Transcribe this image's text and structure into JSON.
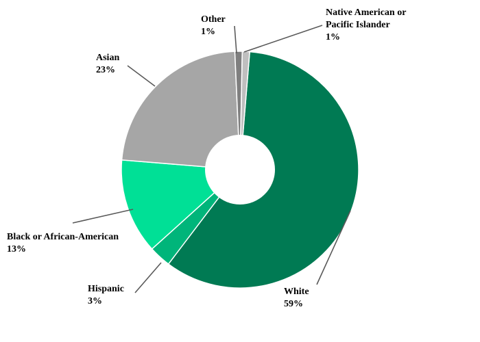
{
  "chart_data": {
    "type": "pie",
    "categories": [
      "White",
      "Hispanic",
      "Black or African-American",
      "Asian",
      "Other",
      "Native American or Pacific Islander"
    ],
    "values": [
      59,
      3,
      13,
      23,
      1,
      1
    ],
    "colors": [
      "#007A53",
      "#00B57A",
      "#00E096",
      "#A6A6A6",
      "#7F7F7F",
      "#BFBFBF"
    ],
    "donut": true,
    "labels": [
      {
        "lines": [
          "White",
          "59%"
        ]
      },
      {
        "lines": [
          "Hispanic",
          "3%"
        ]
      },
      {
        "lines": [
          "Black or African-American",
          "13%"
        ]
      },
      {
        "lines": [
          "Asian",
          "23%"
        ]
      },
      {
        "lines": [
          "Other",
          "1%"
        ]
      },
      {
        "lines": [
          "Native American or",
          "Pacific Islander",
          "1%"
        ]
      }
    ]
  }
}
